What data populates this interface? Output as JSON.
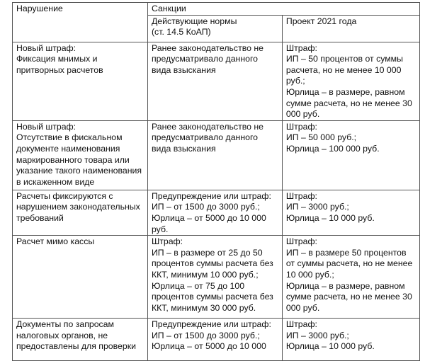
{
  "header": {
    "violation": "Нарушение",
    "sanctions": "Санкции",
    "current": [
      "Действующие нормы",
      "(ст. 14.5 КоАП)"
    ],
    "project": [
      "Проект 2021 года"
    ]
  },
  "rows": [
    {
      "violation": [
        "Новый штраф:",
        "Фиксация мнимых и",
        "притворных расчетов"
      ],
      "current": [
        "Ранее законодательство не",
        "предусматривало данного",
        "вида взыскания"
      ],
      "project": [
        "Штраф:",
        "ИП – 50 процентов от суммы",
        "расчета, но не менее 10 000",
        "руб.;",
        "Юрлица – в размере, равном",
        "сумме расчета, но не менее 30",
        "000 руб."
      ]
    },
    {
      "violation": [
        "Новый штраф:",
        "Отсутствие в фискальном",
        "документе наименования",
        "маркированного товара или",
        "указание такого наименования",
        "в искаженном виде"
      ],
      "current": [
        "Ранее законодательство не",
        "предусматривало данного",
        "вида взыскания"
      ],
      "project": [
        "Штраф:",
        "ИП – 50 000 руб.;",
        "Юрлица – 100 000 руб."
      ]
    },
    {
      "violation": [
        "Расчеты фиксируются с",
        "нарушением законодательных",
        "требований"
      ],
      "current": [
        "Предупреждение или штраф:",
        "ИП – от 1500 до 3000 руб.;",
        "Юрлица – от 5000 до 10 000",
        "руб."
      ],
      "project": [
        "Штраф:",
        "ИП – 3000 руб.;",
        "Юрлица – 10 000 руб."
      ]
    },
    {
      "violation": [
        "Расчет мимо кассы"
      ],
      "current": [
        "Штраф:",
        "ИП – в размере от 25 до 50",
        "процентов суммы расчета без",
        "ККТ, минимум 10 000 руб.;",
        "Юрлица – от 75 до 100",
        "процентов суммы расчета без",
        "ККТ, минимум 30 000 руб."
      ],
      "project": [
        "Штраф:",
        "ИП – в размере 50 процентов",
        "от суммы расчета, но не менее",
        "10 000 руб.;",
        "Юрлица – в размере, равном",
        "сумме расчета, но не менее 30",
        "000 руб."
      ]
    },
    {
      "violation": [
        "Документы по запросам",
        "налоговых органов, не",
        "предоставлены для проверки"
      ],
      "current": [
        "Предупреждение или штраф:",
        "ИП – от 1500 до 3000 руб.;",
        "Юрлица – от 5000 до 10 000"
      ],
      "project": [
        "Штраф:",
        "ИП – 3000 руб.;",
        "Юрлица – 10 000 руб."
      ]
    }
  ]
}
